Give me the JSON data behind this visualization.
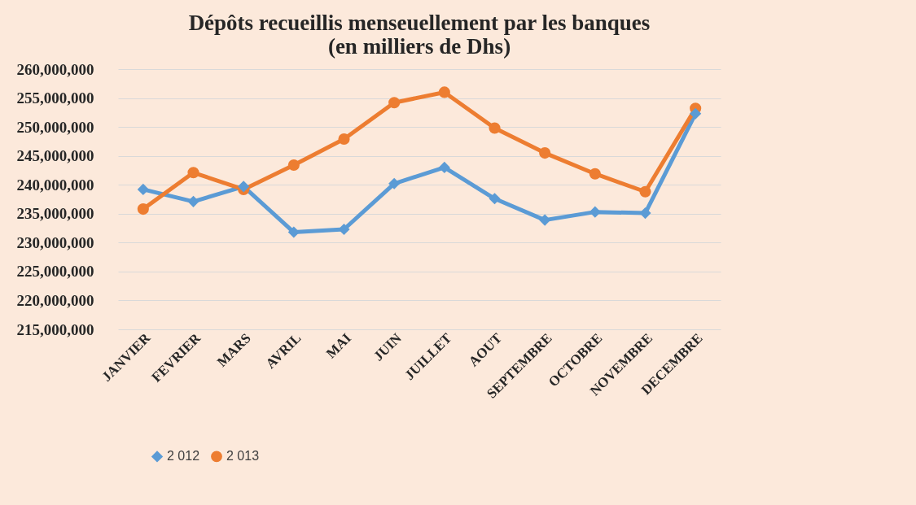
{
  "chart_data": {
    "type": "line",
    "title": [
      "Dépôts recueillis menseuellement par les banques",
      "(en milliers de Dhs)"
    ],
    "categories": [
      "JANVIER",
      "FEVRIER",
      "MARS",
      "AVRIL",
      "MAI",
      "JUIN",
      "JUILLET",
      "AOUT",
      "SEPTEMBRE",
      "OCTOBRE",
      "NOVEMBRE",
      "DECEMBRE"
    ],
    "series": [
      {
        "name": "2 012",
        "color": "#5b9bd5",
        "marker": "diamond",
        "values": [
          239200000,
          237100000,
          239700000,
          231800000,
          232300000,
          240200000,
          243000000,
          237600000,
          233900000,
          235300000,
          235100000,
          252300000
        ]
      },
      {
        "name": "2 013",
        "color": "#ed7d31",
        "marker": "circle",
        "values": [
          235800000,
          242100000,
          239200000,
          243400000,
          247900000,
          254200000,
          256000000,
          249800000,
          245500000,
          241900000,
          238800000,
          253200000
        ]
      }
    ],
    "ylim": [
      215000000,
      260000000
    ],
    "yticks": [
      {
        "value": 215000000,
        "label": "215,000,000"
      },
      {
        "value": 220000000,
        "label": "220,000,000"
      },
      {
        "value": 225000000,
        "label": "225,000,000"
      },
      {
        "value": 230000000,
        "label": "230,000,000"
      },
      {
        "value": 235000000,
        "label": "235,000,000"
      },
      {
        "value": 240000000,
        "label": "240,000,000"
      },
      {
        "value": 245000000,
        "label": "245,000,000"
      },
      {
        "value": 250000000,
        "label": "250,000,000"
      },
      {
        "value": 255000000,
        "label": "255,000,000"
      },
      {
        "value": 260000000,
        "label": "260,000,000"
      }
    ],
    "grid": "y",
    "legend": "bottom",
    "line_style": "solid"
  }
}
